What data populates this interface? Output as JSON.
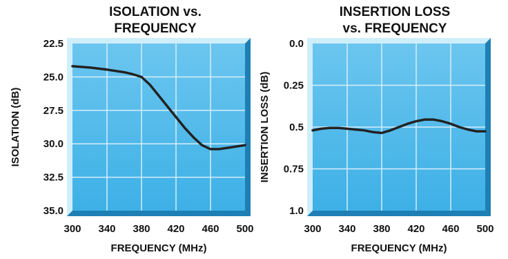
{
  "colors": {
    "plot_fill": "#3db0e6",
    "plot_fill_light": "#6cc6ef",
    "grid": "#d6eef9",
    "frame_light": "#cfeefb",
    "frame_dark": "#1e7fb5",
    "curve": "#222222",
    "text": "#111111"
  },
  "chart_data": [
    {
      "type": "line",
      "title_lines": [
        "ISOLATION vs.",
        "FREQUENCY"
      ],
      "xlabel": "FREQUENCY (MHz)",
      "ylabel": "ISOLATION (dB)",
      "xlim": [
        300,
        500
      ],
      "ylim": [
        22.5,
        35.0
      ],
      "y_inverted": true,
      "grid": true,
      "x_tick_labels": [
        "300",
        "340",
        "380",
        "420",
        "460",
        "500"
      ],
      "y_tick_labels": [
        "22.5",
        "25.0",
        "27.5",
        "30.0",
        "32.5",
        "35.0"
      ],
      "x_ticks": [
        300,
        340,
        380,
        420,
        460,
        500
      ],
      "y_ticks": [
        22.5,
        25.0,
        27.5,
        30.0,
        32.5,
        35.0
      ],
      "series": [
        {
          "x": [
            300,
            320,
            340,
            360,
            370,
            380,
            390,
            400,
            410,
            420,
            430,
            440,
            450,
            460,
            470,
            480,
            490,
            500
          ],
          "y": [
            24.2,
            24.3,
            24.45,
            24.65,
            24.8,
            25.0,
            25.6,
            26.4,
            27.2,
            28.0,
            28.8,
            29.5,
            30.1,
            30.4,
            30.4,
            30.3,
            30.2,
            30.1
          ]
        }
      ]
    },
    {
      "type": "line",
      "title_lines": [
        "INSERTION LOSS",
        "vs. FREQUENCY"
      ],
      "xlabel": "FREQUENCY (MHz)",
      "ylabel": "INSERTION LOSS (dB)",
      "xlim": [
        300,
        500
      ],
      "ylim": [
        0.0,
        1.0
      ],
      "y_inverted": true,
      "grid": true,
      "x_tick_labels": [
        "300",
        "340",
        "380",
        "420",
        "460",
        "500"
      ],
      "y_tick_labels": [
        "0.0",
        "0.25",
        "0.5",
        "0.75",
        "1.0"
      ],
      "x_ticks": [
        300,
        340,
        380,
        420,
        460,
        500
      ],
      "y_ticks": [
        0.0,
        0.25,
        0.5,
        0.75,
        1.0
      ],
      "series": [
        {
          "x": [
            300,
            310,
            320,
            330,
            340,
            350,
            360,
            370,
            380,
            390,
            400,
            410,
            420,
            430,
            440,
            450,
            460,
            470,
            480,
            490,
            500
          ],
          "y": [
            0.52,
            0.51,
            0.505,
            0.505,
            0.51,
            0.515,
            0.52,
            0.53,
            0.535,
            0.52,
            0.5,
            0.48,
            0.465,
            0.455,
            0.455,
            0.465,
            0.48,
            0.5,
            0.515,
            0.525,
            0.525
          ]
        }
      ]
    }
  ]
}
